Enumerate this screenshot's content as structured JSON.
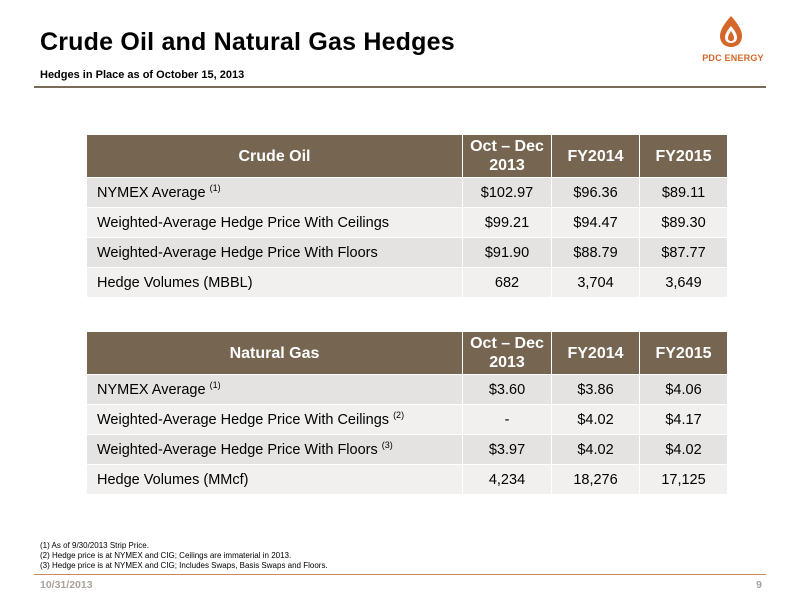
{
  "header": {
    "title": "Crude Oil and Natural Gas Hedges",
    "subtitle": "Hedges in Place as of October 15, 2013",
    "logo_text": "PDC ENERGY"
  },
  "columns": [
    "Oct – Dec 2013",
    "FY2014",
    "FY2015"
  ],
  "crude_oil": {
    "heading": "Crude Oil",
    "rows": [
      {
        "label": "NYMEX Average",
        "note": "(1)",
        "values": [
          "$102.97",
          "$96.36",
          "$89.11"
        ]
      },
      {
        "label": "Weighted-Average Hedge Price With Ceilings",
        "note": "",
        "values": [
          "$99.21",
          "$94.47",
          "$89.30"
        ]
      },
      {
        "label": "Weighted-Average Hedge Price With Floors",
        "note": "",
        "values": [
          "$91.90",
          "$88.79",
          "$87.77"
        ]
      },
      {
        "label": "Hedge Volumes (MBBL)",
        "note": "",
        "values": [
          "682",
          "3,704",
          "3,649"
        ]
      }
    ]
  },
  "natural_gas": {
    "heading": "Natural Gas",
    "rows": [
      {
        "label": "NYMEX Average",
        "note": "(1)",
        "values": [
          "$3.60",
          "$3.86",
          "$4.06"
        ]
      },
      {
        "label": "Weighted-Average Hedge Price With Ceilings",
        "note": "(2)",
        "values": [
          "-",
          "$4.02",
          "$4.17"
        ]
      },
      {
        "label": "Weighted-Average Hedge Price With Floors",
        "note": "(3)",
        "values": [
          "$3.97",
          "$4.02",
          "$4.02"
        ]
      },
      {
        "label": "Hedge Volumes (MMcf)",
        "note": "",
        "values": [
          "4,234",
          "18,276",
          "17,125"
        ]
      }
    ]
  },
  "footnotes": [
    "(1) As of 9/30/2013 Strip Price.",
    "(2) Hedge price is at NYMEX and CIG; Ceilings are immaterial in 2013.",
    "(3) Hedge price is at NYMEX and CIG; Includes Swaps, Basis Swaps and Floors."
  ],
  "footer": {
    "date": "10/31/2013",
    "page": "9"
  },
  "colors": {
    "header_brown": "#766651",
    "row_shade": "#e4e3e1",
    "logo_orange": "#d4672a"
  }
}
